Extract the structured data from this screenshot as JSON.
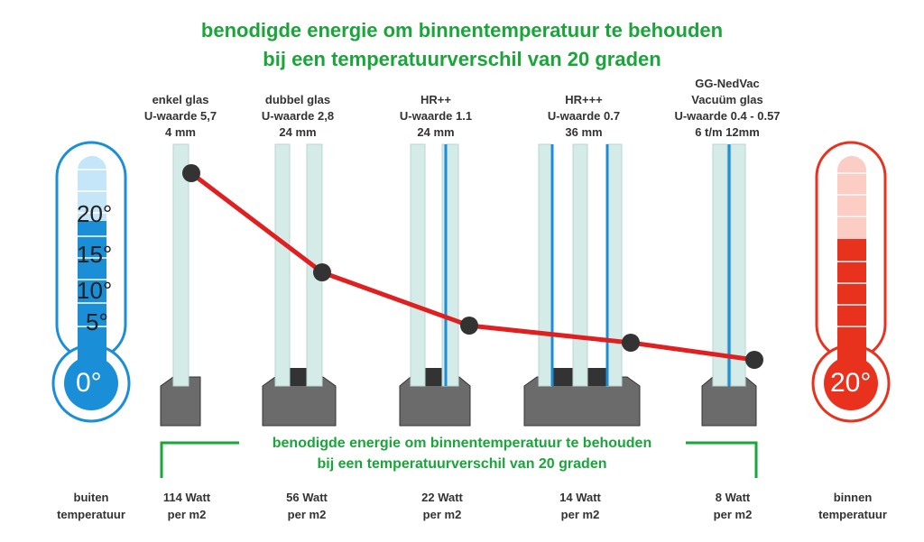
{
  "title": {
    "line1": "benodigde energie om binnentemperatuur te behouden",
    "line2": "bij een temperatuurverschil van 20 graden"
  },
  "glass_types": [
    {
      "l1": "enkel glas",
      "l2": "U-waarde 5,7",
      "l3": "4 mm",
      "watt": "114 Watt",
      "unit": "per m2"
    },
    {
      "l1": "dubbel glas",
      "l2": "U-waarde 2,8",
      "l3": "24 mm",
      "watt": "56 Watt",
      "unit": "per m2"
    },
    {
      "l1": "HR++",
      "l2": "U-waarde 1.1",
      "l3": "24 mm",
      "watt": "22 Watt",
      "unit": "per m2"
    },
    {
      "l1": "HR+++",
      "l2": "U-waarde 0.7",
      "l3": "36 mm",
      "watt": "14 Watt",
      "unit": "per m2"
    },
    {
      "l0": "GG-NedVac",
      "l1": "Vacuüm glas",
      "l2": "U-waarde 0.4  - 0.57",
      "l3": "6 t/m 12mm",
      "watt": "8 Watt",
      "unit": "per m2"
    }
  ],
  "chart_data": {
    "type": "line",
    "categories": [
      "enkel glas",
      "dubbel glas",
      "HR++",
      "HR+++",
      "Vacuüm glas"
    ],
    "values": [
      114,
      56,
      22,
      14,
      8
    ],
    "ylabel": "Watt per m2"
  },
  "thermometer_left": {
    "ticks": [
      "20°",
      "15°",
      "10°",
      "5°"
    ],
    "bulb": "0°",
    "l1": "buiten",
    "l2": "temperatuur"
  },
  "thermometer_right": {
    "bulb": "20°",
    "l1": "binnen",
    "l2": "temperatuur"
  },
  "colors": {
    "green": "#1aa53a",
    "line": "#e02020",
    "blue": "#1a8fd8",
    "red": "#e8321e"
  }
}
